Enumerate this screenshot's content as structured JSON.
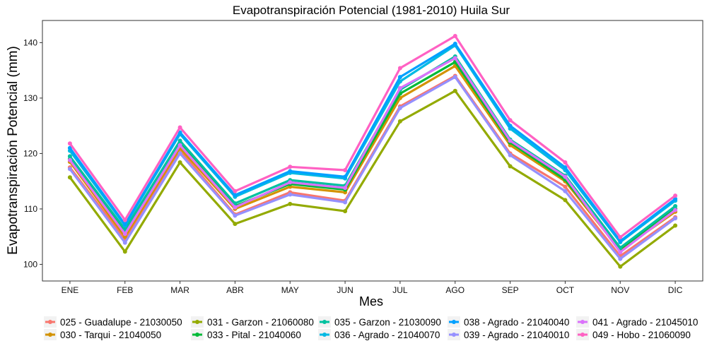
{
  "chart_data": {
    "type": "line",
    "title": "Evapotranspiración Potencial (1981-2010)  Huila Sur",
    "xlabel": "Mes",
    "ylabel": "Evapotranspiración Potencial  (mm)",
    "categories": [
      "ENE",
      "FEB",
      "MAR",
      "ABR",
      "MAY",
      "JUN",
      "JUL",
      "AGO",
      "SEP",
      "OCT",
      "NOV",
      "DIC"
    ],
    "ylim": [
      97,
      144
    ],
    "yticks": [
      100,
      110,
      120,
      130,
      140
    ],
    "grid": false,
    "legend_position": "bottom",
    "series": [
      {
        "name": "025 - Guadalupe - 21030050",
        "color": "#F8766D",
        "values": [
          117.5,
          104.5,
          120.5,
          109.0,
          113.0,
          111.5,
          128.5,
          134.0,
          120.0,
          114.0,
          101.5,
          108.5
        ]
      },
      {
        "name": "030 - Tarqui - 21040050",
        "color": "#D39200",
        "values": [
          118.5,
          105.0,
          121.0,
          110.0,
          114.0,
          113.0,
          130.0,
          135.8,
          121.5,
          115.0,
          102.5,
          109.5
        ]
      },
      {
        "name": "031 - Garzon - 21060080",
        "color": "#93AA00",
        "values": [
          115.7,
          102.3,
          118.4,
          107.3,
          110.9,
          109.6,
          125.8,
          131.3,
          117.7,
          111.6,
          99.6,
          107.0
        ]
      },
      {
        "name": "033 - Pital - 21040060",
        "color": "#00BA38",
        "values": [
          119.0,
          105.8,
          121.8,
          110.5,
          114.5,
          113.5,
          130.8,
          136.5,
          122.0,
          115.3,
          102.8,
          110.0
        ]
      },
      {
        "name": "035 - Garzon - 21030090",
        "color": "#00C19F",
        "values": [
          119.5,
          106.3,
          122.3,
          111.0,
          115.2,
          114.2,
          131.5,
          137.5,
          122.5,
          116.0,
          103.0,
          110.5
        ]
      },
      {
        "name": "036 - Agrado - 21040070",
        "color": "#00B9E3",
        "values": [
          120.5,
          107.0,
          123.5,
          112.2,
          116.5,
          115.5,
          133.0,
          139.5,
          124.5,
          117.0,
          104.0,
          111.5
        ]
      },
      {
        "name": "038 - Agrado - 21040040",
        "color": "#00A0FF",
        "values": [
          121.0,
          107.2,
          123.8,
          112.5,
          116.8,
          115.8,
          133.8,
          139.8,
          125.0,
          117.5,
          104.2,
          111.8
        ]
      },
      {
        "name": "039 - Agrado - 21040010",
        "color": "#9590FF",
        "values": [
          117.2,
          103.9,
          120.0,
          108.8,
          112.6,
          111.2,
          128.2,
          133.8,
          119.7,
          113.2,
          101.0,
          108.3
        ]
      },
      {
        "name": "041 - Agrado - 21045010",
        "color": "#DB72FB",
        "values": [
          118.8,
          105.5,
          121.5,
          110.3,
          114.8,
          113.8,
          131.8,
          137.2,
          122.3,
          115.8,
          102.2,
          109.8
        ]
      },
      {
        "name": "049 - Hobo - 21060090",
        "color": "#FF61C3",
        "values": [
          121.8,
          108.0,
          124.7,
          113.2,
          117.6,
          117.0,
          135.4,
          141.2,
          126.0,
          118.4,
          104.9,
          112.4
        ]
      }
    ]
  }
}
